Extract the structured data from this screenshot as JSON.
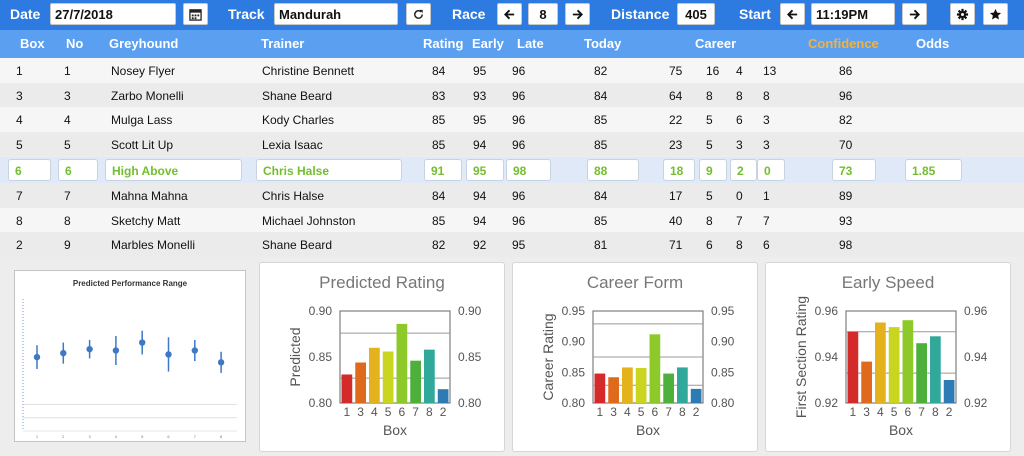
{
  "toolbar": {
    "date_label": "Date",
    "date_value": "27/7/2018",
    "track_label": "Track",
    "track_value": "Mandurah",
    "race_label": "Race",
    "race_value": "8",
    "distance_label": "Distance",
    "distance_value": "405",
    "start_label": "Start",
    "start_value": "11:19PM"
  },
  "headers": {
    "box": "Box",
    "no": "No",
    "greyhound": "Greyhound",
    "trainer": "Trainer",
    "rating": "Rating",
    "early": "Early",
    "late": "Late",
    "today": "Today",
    "career": "Career",
    "confidence": "Confidence",
    "odds": "Odds"
  },
  "rows": [
    {
      "box": "1",
      "no": "1",
      "greyhound": "Nosey Flyer",
      "trainer": "Christine Bennett",
      "rating": "84",
      "early": "95",
      "late": "96",
      "today": "82",
      "c1": "75",
      "c2": "16",
      "c3": "4",
      "c4": "13",
      "confidence": "86",
      "odds": ""
    },
    {
      "box": "3",
      "no": "3",
      "greyhound": "Zarbo Monelli",
      "trainer": "Shane Beard",
      "rating": "83",
      "early": "93",
      "late": "96",
      "today": "84",
      "c1": "64",
      "c2": "8",
      "c3": "8",
      "c4": "8",
      "confidence": "96",
      "odds": ""
    },
    {
      "box": "4",
      "no": "4",
      "greyhound": "Mulga Lass",
      "trainer": "Kody Charles",
      "rating": "85",
      "early": "95",
      "late": "96",
      "today": "85",
      "c1": "22",
      "c2": "5",
      "c3": "6",
      "c4": "3",
      "confidence": "82",
      "odds": ""
    },
    {
      "box": "5",
      "no": "5",
      "greyhound": "Scott Lit Up",
      "trainer": "Lexia Isaac",
      "rating": "85",
      "early": "94",
      "late": "96",
      "today": "85",
      "c1": "23",
      "c2": "5",
      "c3": "3",
      "c4": "3",
      "confidence": "70",
      "odds": ""
    },
    {
      "box": "6",
      "no": "6",
      "greyhound": "High Above",
      "trainer": "Chris Halse",
      "rating": "91",
      "early": "95",
      "late": "98",
      "today": "88",
      "c1": "18",
      "c2": "9",
      "c3": "2",
      "c4": "0",
      "confidence": "73",
      "odds": "1.85"
    },
    {
      "box": "7",
      "no": "7",
      "greyhound": "Mahna Mahna",
      "trainer": "Chris Halse",
      "rating": "84",
      "early": "94",
      "late": "96",
      "today": "84",
      "c1": "17",
      "c2": "5",
      "c3": "0",
      "c4": "1",
      "confidence": "89",
      "odds": ""
    },
    {
      "box": "8",
      "no": "8",
      "greyhound": "Sketchy Matt",
      "trainer": "Michael Johnston",
      "rating": "85",
      "early": "94",
      "late": "96",
      "today": "85",
      "c1": "40",
      "c2": "8",
      "c3": "7",
      "c4": "7",
      "confidence": "93",
      "odds": ""
    },
    {
      "box": "2",
      "no": "9",
      "greyhound": "Marbles Monelli",
      "trainer": "Shane Beard",
      "rating": "82",
      "early": "92",
      "late": "95",
      "today": "81",
      "c1": "71",
      "c2": "6",
      "c3": "8",
      "c4": "6",
      "confidence": "98",
      "odds": ""
    }
  ],
  "colors": {
    "topbar": "#2d7be0",
    "header": "#5a9ff0",
    "confidence_header": "#f5b23a",
    "highlight_text": "#72be2e",
    "bars": [
      "#d42a2a",
      "#e06a1c",
      "#e4b21c",
      "#c9d51e",
      "#8ec92a",
      "#4cb03a",
      "#30a89a",
      "#2d7ab5"
    ]
  },
  "chart_data": [
    {
      "type": "scatter",
      "title": "Predicted Performance Range",
      "x_tick_labels": [
        "1",
        "2",
        "3",
        "4",
        "5",
        "6",
        "7",
        "8"
      ],
      "series": [
        {
          "x": [
            1,
            2,
            3,
            4,
            5,
            6,
            7,
            8
          ],
          "y": [
            0.56,
            0.59,
            0.62,
            0.61,
            0.67,
            0.58,
            0.61,
            0.52
          ],
          "err": [
            0.09,
            0.08,
            0.07,
            0.11,
            0.09,
            0.13,
            0.08,
            0.08
          ]
        }
      ],
      "ylim": [
        0,
        1
      ]
    },
    {
      "type": "bar",
      "title": "Predicted Rating",
      "xlabel": "Box",
      "ylabel": "Predicted",
      "categories": [
        "1",
        "3",
        "4",
        "5",
        "6",
        "7",
        "8",
        "2"
      ],
      "values": [
        0.831,
        0.844,
        0.86,
        0.856,
        0.886,
        0.846,
        0.858,
        0.815
      ],
      "ylim": [
        0.8,
        0.9
      ],
      "yticks": [
        "0.80",
        "0.85",
        "0.90"
      ],
      "ref_lines": [
        0.876,
        0.827
      ]
    },
    {
      "type": "bar",
      "title": "Career Form",
      "xlabel": "Box",
      "ylabel": "Career Rating",
      "categories": [
        "1",
        "3",
        "4",
        "5",
        "6",
        "7",
        "8",
        "2"
      ],
      "values": [
        0.848,
        0.842,
        0.858,
        0.857,
        0.912,
        0.848,
        0.858,
        0.823
      ],
      "ylim": [
        0.8,
        0.95
      ],
      "yticks": [
        "0.80",
        "0.85",
        "0.90",
        "0.95"
      ],
      "ref_lines": [
        0.929,
        0.875,
        0.829
      ]
    },
    {
      "type": "bar",
      "title": "Early Speed",
      "xlabel": "Box",
      "ylabel": "First Section Rating",
      "categories": [
        "1",
        "3",
        "4",
        "5",
        "6",
        "7",
        "8",
        "2"
      ],
      "values": [
        0.951,
        0.938,
        0.955,
        0.953,
        0.956,
        0.946,
        0.949,
        0.93
      ],
      "ylim": [
        0.92,
        0.96
      ],
      "yticks": [
        "0.92",
        "0.94",
        "0.96"
      ],
      "ref_lines": [
        0.951,
        0.933
      ]
    }
  ]
}
